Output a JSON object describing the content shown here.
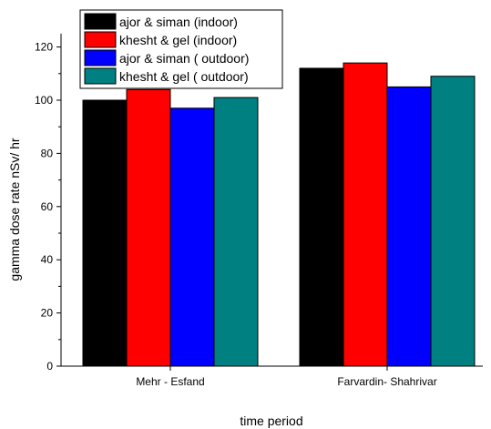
{
  "chart_data": {
    "type": "bar",
    "title": "",
    "xlabel": "time period",
    "ylabel": "gamma dose rate nSv/ hr",
    "categories": [
      "Mehr - Esfand",
      "Farvardin- Shahrivar"
    ],
    "series": [
      {
        "name": "ajor & siman (indoor)",
        "color": "#000000",
        "values": [
          100,
          112
        ]
      },
      {
        "name": "khesht & gel (indoor)",
        "color": "#ff0000",
        "values": [
          104,
          114
        ]
      },
      {
        "name": "ajor & siman ( outdoor)",
        "color": "#0000ff",
        "values": [
          97,
          105
        ]
      },
      {
        "name": "khesht & gel ( outdoor)",
        "color": "#008080",
        "values": [
          101,
          109
        ]
      }
    ],
    "ylim": [
      0,
      125
    ],
    "yticks": [
      0,
      20,
      40,
      60,
      80,
      100,
      120
    ],
    "grid": false,
    "legend_position": "top-left"
  }
}
